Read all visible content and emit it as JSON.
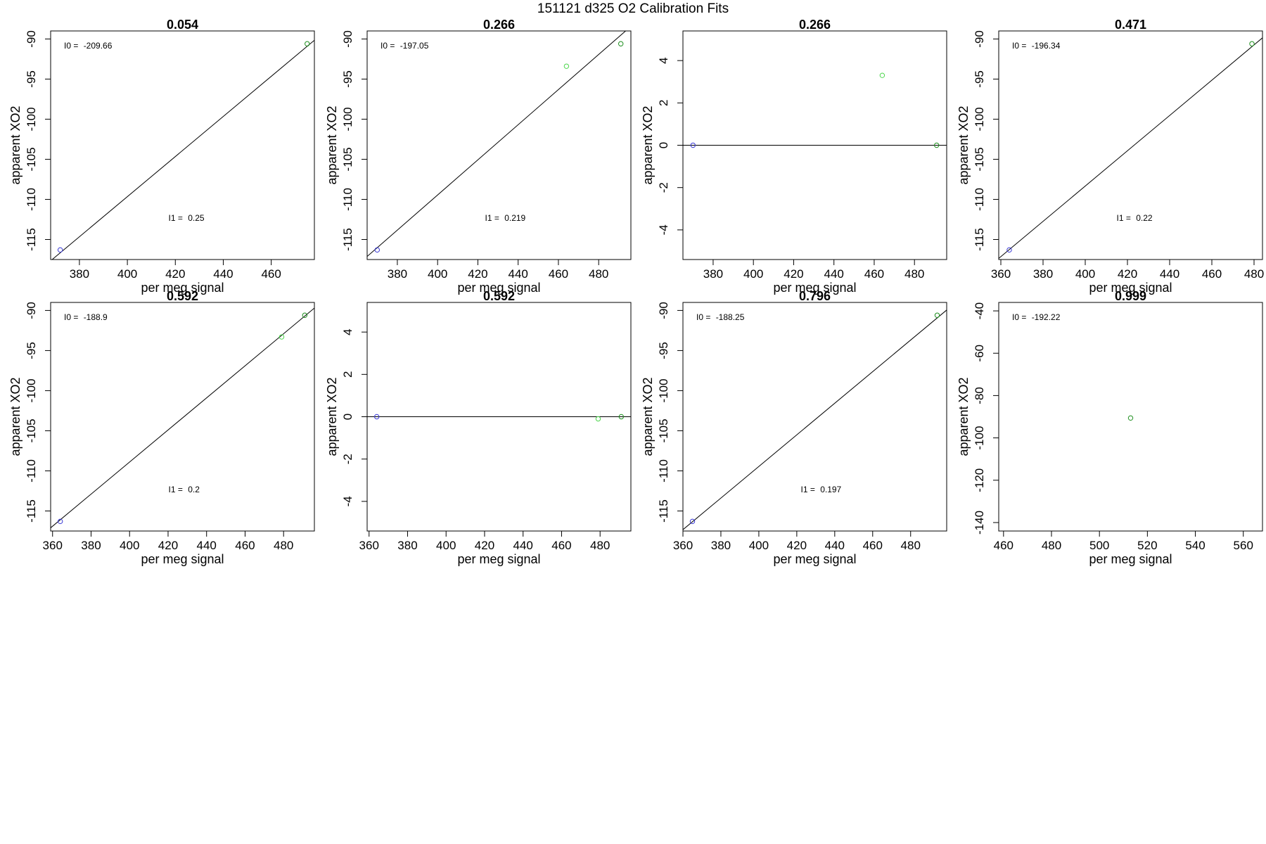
{
  "figure": {
    "title": "151121   d325   O2 Calibration Fits"
  },
  "colors": {
    "blue": "#3a3ad6",
    "green": "#1f8f1f",
    "lightgreen": "#4cd64c",
    "line": "#000000"
  },
  "chart_data": [
    {
      "type": "scatter",
      "title": "0.054",
      "xlabel": "per meg signal",
      "ylabel": "apparent XO2",
      "xlim": [
        368,
        478
      ],
      "ylim": [
        -117.5,
        -89
      ],
      "xticks": [
        380,
        400,
        420,
        440,
        460
      ],
      "yticks": [
        -115,
        -110,
        -105,
        -100,
        -95,
        -90
      ],
      "points": [
        {
          "x": 372,
          "y": -116.3,
          "color": "blue"
        },
        {
          "x": 475,
          "y": -90.6,
          "color": "green"
        }
      ],
      "fit_line": {
        "kind": "line",
        "intercept": -209.66,
        "slope": 0.25
      },
      "annotations": [
        {
          "label": "I0 = ",
          "value": "-209.66",
          "pos": "top-left"
        },
        {
          "label": "I1 = ",
          "value": "0.25",
          "pos": "bottom-middle"
        }
      ]
    },
    {
      "type": "scatter",
      "title": "0.266",
      "xlabel": "per meg signal",
      "ylabel": "apparent XO2",
      "xlim": [
        365,
        496
      ],
      "ylim": [
        -117.5,
        -89
      ],
      "xticks": [
        380,
        400,
        420,
        440,
        460,
        480
      ],
      "yticks": [
        -115,
        -110,
        -105,
        -100,
        -95,
        -90
      ],
      "points": [
        {
          "x": 370,
          "y": -116.3,
          "color": "blue"
        },
        {
          "x": 464,
          "y": -93.4,
          "color": "lightgreen"
        },
        {
          "x": 491,
          "y": -90.6,
          "color": "green"
        }
      ],
      "fit_line": {
        "kind": "line",
        "intercept": -197.05,
        "slope": 0.219
      },
      "annotations": [
        {
          "label": "I0 = ",
          "value": "-197.05",
          "pos": "top-left"
        },
        {
          "label": "I1 = ",
          "value": "0.219",
          "pos": "bottom-middle"
        }
      ]
    },
    {
      "type": "scatter",
      "title": "0.266",
      "xlabel": "per meg signal",
      "ylabel": "apparent XO2",
      "xlim": [
        365,
        496
      ],
      "ylim": [
        -5.4,
        5.4
      ],
      "xticks": [
        380,
        400,
        420,
        440,
        460,
        480
      ],
      "yticks": [
        -4,
        -2,
        0,
        2,
        4
      ],
      "points": [
        {
          "x": 370,
          "y": 0,
          "color": "blue"
        },
        {
          "x": 464,
          "y": 3.3,
          "color": "lightgreen"
        },
        {
          "x": 491,
          "y": 0,
          "color": "green"
        }
      ],
      "fit_line": {
        "kind": "hline",
        "y": 0
      },
      "annotations": []
    },
    {
      "type": "scatter",
      "title": "0.471",
      "xlabel": "per meg signal",
      "ylabel": "apparent XO2",
      "xlim": [
        359,
        484
      ],
      "ylim": [
        -117.5,
        -89
      ],
      "xticks": [
        360,
        380,
        400,
        420,
        440,
        460,
        480
      ],
      "yticks": [
        -115,
        -110,
        -105,
        -100,
        -95,
        -90
      ],
      "points": [
        {
          "x": 364,
          "y": -116.3,
          "color": "blue"
        },
        {
          "x": 479,
          "y": -90.6,
          "color": "green"
        }
      ],
      "fit_line": {
        "kind": "line",
        "intercept": -196.34,
        "slope": 0.22
      },
      "annotations": [
        {
          "label": "I0 = ",
          "value": "-196.34",
          "pos": "top-left"
        },
        {
          "label": "I1 = ",
          "value": "0.22",
          "pos": "bottom-middle"
        }
      ]
    },
    {
      "type": "scatter",
      "title": "0.592",
      "xlabel": "per meg signal",
      "ylabel": "apparent XO2",
      "xlim": [
        359,
        496
      ],
      "ylim": [
        -117.5,
        -89
      ],
      "xticks": [
        360,
        380,
        400,
        420,
        440,
        460,
        480
      ],
      "yticks": [
        -115,
        -110,
        -105,
        -100,
        -95,
        -90
      ],
      "points": [
        {
          "x": 364,
          "y": -116.3,
          "color": "blue"
        },
        {
          "x": 479,
          "y": -93.3,
          "color": "lightgreen"
        },
        {
          "x": 491,
          "y": -90.6,
          "color": "green"
        }
      ],
      "fit_line": {
        "kind": "line",
        "intercept": -188.9,
        "slope": 0.2
      },
      "annotations": [
        {
          "label": "I0 = ",
          "value": "-188.9",
          "pos": "top-left"
        },
        {
          "label": "I1 = ",
          "value": "0.2",
          "pos": "bottom-middle"
        }
      ]
    },
    {
      "type": "scatter",
      "title": "0.592",
      "xlabel": "per meg signal",
      "ylabel": "apparent XO2",
      "xlim": [
        359,
        496
      ],
      "ylim": [
        -5.4,
        5.4
      ],
      "xticks": [
        360,
        380,
        400,
        420,
        440,
        460,
        480
      ],
      "yticks": [
        -4,
        -2,
        0,
        2,
        4
      ],
      "points": [
        {
          "x": 364,
          "y": 0,
          "color": "blue"
        },
        {
          "x": 479,
          "y": -0.1,
          "color": "lightgreen"
        },
        {
          "x": 491,
          "y": 0,
          "color": "green"
        }
      ],
      "fit_line": {
        "kind": "hline",
        "y": 0
      },
      "annotations": []
    },
    {
      "type": "scatter",
      "title": "0.796",
      "xlabel": "per meg signal",
      "ylabel": "apparent XO2",
      "xlim": [
        360,
        499
      ],
      "ylim": [
        -117.5,
        -89
      ],
      "xticks": [
        360,
        380,
        400,
        420,
        440,
        460,
        480
      ],
      "yticks": [
        -115,
        -110,
        -105,
        -100,
        -95,
        -90
      ],
      "points": [
        {
          "x": 365,
          "y": -116.3,
          "color": "blue"
        },
        {
          "x": 494,
          "y": -90.6,
          "color": "green"
        }
      ],
      "fit_line": {
        "kind": "line",
        "intercept": -188.25,
        "slope": 0.197
      },
      "annotations": [
        {
          "label": "I0 = ",
          "value": "-188.25",
          "pos": "top-left"
        },
        {
          "label": "I1 = ",
          "value": "0.197",
          "pos": "bottom-middle"
        }
      ]
    },
    {
      "type": "scatter",
      "title": "0.999",
      "xlabel": "per meg signal",
      "ylabel": "apparent XO2",
      "xlim": [
        458,
        568
      ],
      "ylim": [
        -144,
        -36
      ],
      "xticks": [
        460,
        480,
        500,
        520,
        540,
        560
      ],
      "yticks": [
        -140,
        -120,
        -100,
        -80,
        -60,
        -40
      ],
      "points": [
        {
          "x": 513,
          "y": -90.6,
          "color": "green"
        }
      ],
      "fit_line": null,
      "annotations": [
        {
          "label": "I0 = ",
          "value": "-192.22",
          "pos": "top-left"
        }
      ]
    }
  ]
}
